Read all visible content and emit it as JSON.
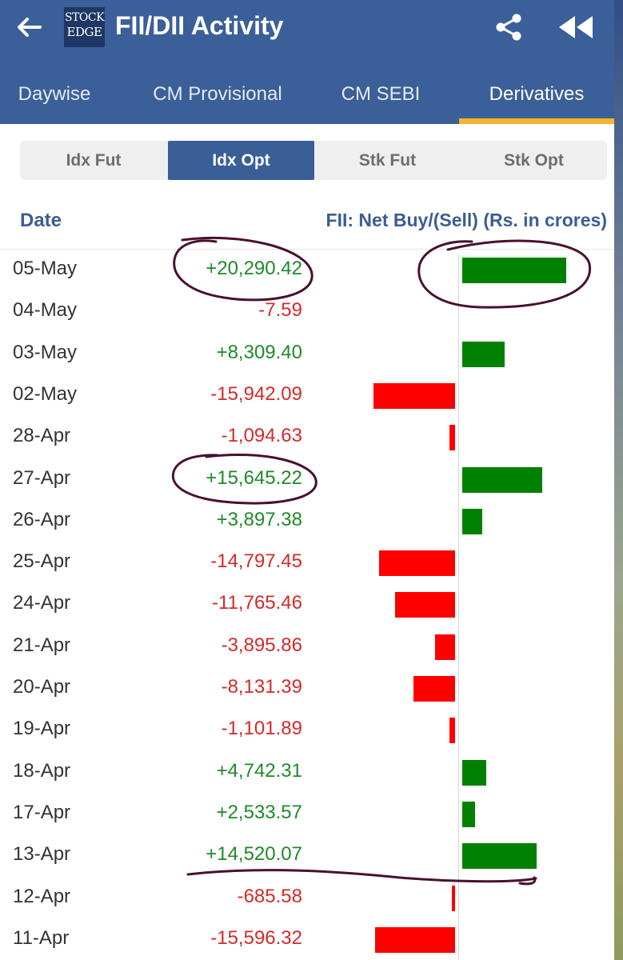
{
  "header": {
    "title": "FII/DII Activity",
    "logo_line1": "STOCK",
    "logo_line2": "EDGE",
    "back_icon": "arrow-left-icon",
    "share_icon": "share-icon",
    "rewind_icon": "rewind-icon"
  },
  "tabs": [
    {
      "label": "Daywise",
      "active": false
    },
    {
      "label": "CM Provisional",
      "active": false
    },
    {
      "label": "CM SEBI",
      "active": false
    },
    {
      "label": "Derivatives",
      "active": true
    }
  ],
  "segments": [
    {
      "label": "Idx Fut",
      "active": false
    },
    {
      "label": "Idx Opt",
      "active": true
    },
    {
      "label": "Stk Fut",
      "active": false
    },
    {
      "label": "Stk Opt",
      "active": false
    }
  ],
  "table": {
    "col_date": "Date",
    "col_value": "FII: Net Buy/(Sell) (Rs. in crores)",
    "rows": [
      {
        "date": "05-May",
        "value": "+20,290.42",
        "num": 20290.42
      },
      {
        "date": "04-May",
        "value": "-7.59",
        "num": -7.59
      },
      {
        "date": "03-May",
        "value": "+8,309.40",
        "num": 8309.4
      },
      {
        "date": "02-May",
        "value": "-15,942.09",
        "num": -15942.09
      },
      {
        "date": "28-Apr",
        "value": "-1,094.63",
        "num": -1094.63
      },
      {
        "date": "27-Apr",
        "value": "+15,645.22",
        "num": 15645.22
      },
      {
        "date": "26-Apr",
        "value": "+3,897.38",
        "num": 3897.38
      },
      {
        "date": "25-Apr",
        "value": "-14,797.45",
        "num": -14797.45
      },
      {
        "date": "24-Apr",
        "value": "-11,765.46",
        "num": -11765.46
      },
      {
        "date": "21-Apr",
        "value": "-3,895.86",
        "num": -3895.86
      },
      {
        "date": "20-Apr",
        "value": "-8,131.39",
        "num": -8131.39
      },
      {
        "date": "19-Apr",
        "value": "-1,101.89",
        "num": -1101.89
      },
      {
        "date": "18-Apr",
        "value": "+4,742.31",
        "num": 4742.31
      },
      {
        "date": "17-Apr",
        "value": "+2,533.57",
        "num": 2533.57
      },
      {
        "date": "13-Apr",
        "value": "+14,520.07",
        "num": 14520.07
      },
      {
        "date": "12-Apr",
        "value": "-685.58",
        "num": -685.58
      },
      {
        "date": "11-Apr",
        "value": "-15,596.32",
        "num": -15596.32
      }
    ]
  },
  "colors": {
    "appbar": "#3b5f98",
    "accent": "#f5b52e",
    "positive_text": "#1f8a2a",
    "negative_text": "#d42a2a",
    "positive_bar": "#008000",
    "negative_bar": "#ff0000",
    "ink_annotation": "#4a1030"
  }
}
